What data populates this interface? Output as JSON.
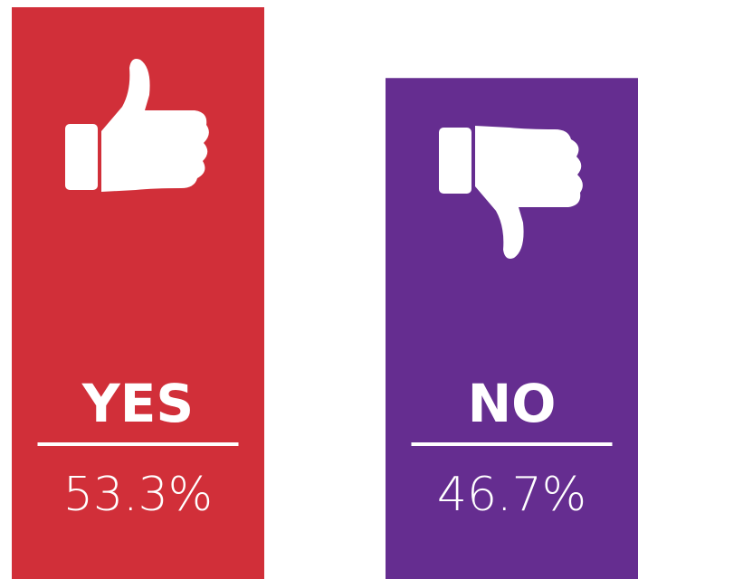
{
  "chart_data": {
    "type": "bar",
    "categories": [
      "YES",
      "NO"
    ],
    "values": [
      53.3,
      46.7
    ],
    "value_labels": [
      "53.3%",
      "46.7%"
    ],
    "colors": [
      "#d12f39",
      "#652d90"
    ]
  }
}
